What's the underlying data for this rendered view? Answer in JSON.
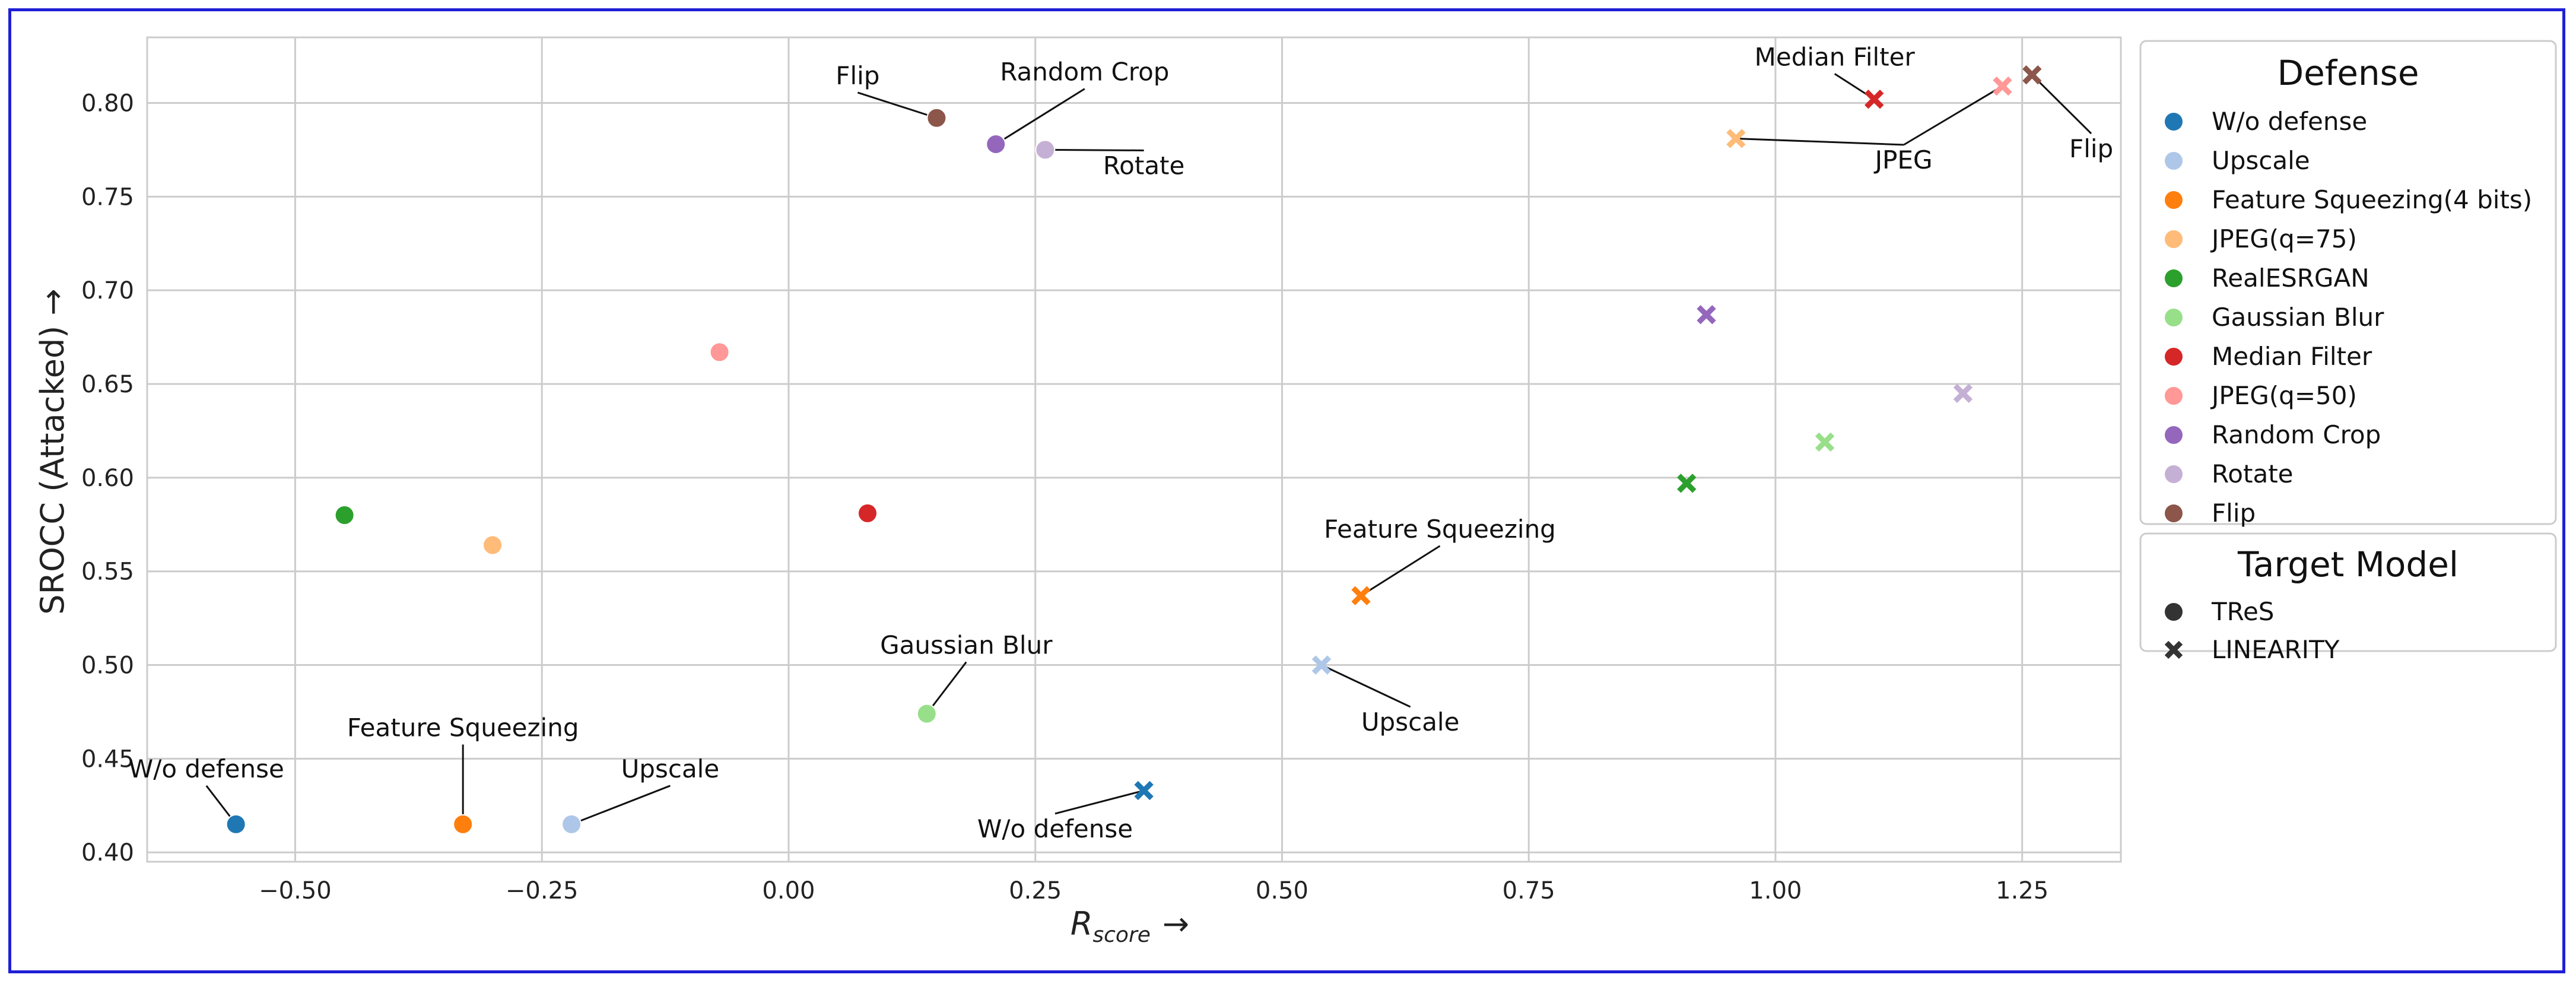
{
  "chart_data": {
    "type": "scatter",
    "title": "",
    "xlabel": "R",
    "xlabel_subscript": "score",
    "xlabel_arrow": "→",
    "ylabel": "SROCC (Attacked) →",
    "xlim": [
      -0.65,
      1.35
    ],
    "ylim": [
      0.395,
      0.835
    ],
    "xticks": [
      -0.5,
      -0.25,
      0.0,
      0.25,
      0.5,
      0.75,
      1.0,
      1.25
    ],
    "xtick_labels": [
      "−0.50",
      "−0.25",
      "0.00",
      "0.25",
      "0.50",
      "0.75",
      "1.00",
      "1.25"
    ],
    "yticks": [
      0.4,
      0.45,
      0.5,
      0.55,
      0.6,
      0.65,
      0.7,
      0.75,
      0.8
    ],
    "ytick_labels": [
      "0.40",
      "0.45",
      "0.50",
      "0.55",
      "0.60",
      "0.65",
      "0.70",
      "0.75",
      "0.80"
    ],
    "grid": true,
    "series": [
      {
        "name": "W/o defense",
        "color": "#1f77b4",
        "points": [
          {
            "model": "TReS",
            "x": -0.56,
            "y": 0.415
          },
          {
            "model": "LINEARITY",
            "x": 0.36,
            "y": 0.433
          }
        ]
      },
      {
        "name": "Upscale",
        "color": "#aec7e8",
        "points": [
          {
            "model": "TReS",
            "x": -0.22,
            "y": 0.415
          },
          {
            "model": "LINEARITY",
            "x": 0.54,
            "y": 0.5
          }
        ]
      },
      {
        "name": "Feature Squeezing(4 bits)",
        "color": "#ff7f0e",
        "points": [
          {
            "model": "TReS",
            "x": -0.33,
            "y": 0.415
          },
          {
            "model": "LINEARITY",
            "x": 0.58,
            "y": 0.537
          }
        ]
      },
      {
        "name": "JPEG(q=75)",
        "color": "#ffbb78",
        "points": [
          {
            "model": "TReS",
            "x": -0.3,
            "y": 0.564
          },
          {
            "model": "LINEARITY",
            "x": 0.96,
            "y": 0.781
          }
        ]
      },
      {
        "name": "RealESRGAN",
        "color": "#2ca02c",
        "points": [
          {
            "model": "TReS",
            "x": -0.45,
            "y": 0.58
          },
          {
            "model": "LINEARITY",
            "x": 0.91,
            "y": 0.597
          }
        ]
      },
      {
        "name": "Gaussian Blur",
        "color": "#98df8a",
        "points": [
          {
            "model": "TReS",
            "x": 0.14,
            "y": 0.474
          },
          {
            "model": "LINEARITY",
            "x": 1.05,
            "y": 0.619
          }
        ]
      },
      {
        "name": "Median Filter",
        "color": "#d62728",
        "points": [
          {
            "model": "TReS",
            "x": 0.08,
            "y": 0.581
          },
          {
            "model": "LINEARITY",
            "x": 1.1,
            "y": 0.802
          }
        ]
      },
      {
        "name": "JPEG(q=50)",
        "color": "#ff9896",
        "points": [
          {
            "model": "TReS",
            "x": -0.07,
            "y": 0.667
          },
          {
            "model": "LINEARITY",
            "x": 1.23,
            "y": 0.809
          }
        ]
      },
      {
        "name": "Random Crop",
        "color": "#9467bd",
        "points": [
          {
            "model": "TReS",
            "x": 0.21,
            "y": 0.778
          },
          {
            "model": "LINEARITY",
            "x": 0.93,
            "y": 0.687
          }
        ]
      },
      {
        "name": "Rotate",
        "color": "#c5b0d5",
        "points": [
          {
            "model": "TReS",
            "x": 0.26,
            "y": 0.775
          },
          {
            "model": "LINEARITY",
            "x": 1.19,
            "y": 0.645
          }
        ]
      },
      {
        "name": "Flip",
        "color": "#8c564b",
        "points": [
          {
            "model": "TReS",
            "x": 0.15,
            "y": 0.792
          },
          {
            "model": "LINEARITY",
            "x": 1.26,
            "y": 0.815
          }
        ]
      }
    ],
    "annotations": [
      {
        "text": "W/o defense",
        "point": [
          -0.56,
          0.415
        ],
        "text_at": [
          -0.59,
          0.44
        ]
      },
      {
        "text": "Feature Squeezing",
        "point": [
          -0.33,
          0.415
        ],
        "text_at": [
          -0.33,
          0.462
        ]
      },
      {
        "text": "Upscale",
        "point": [
          -0.22,
          0.415
        ],
        "text_at": [
          -0.12,
          0.44
        ]
      },
      {
        "text": "W/o defense",
        "point": [
          0.36,
          0.433
        ],
        "text_at": [
          0.27,
          0.408
        ]
      },
      {
        "text": "Gaussian Blur",
        "point": [
          0.14,
          0.474
        ],
        "text_at": [
          0.18,
          0.506
        ]
      },
      {
        "text": "Feature Squeezing",
        "point": [
          0.58,
          0.537
        ],
        "text_at": [
          0.66,
          0.568
        ]
      },
      {
        "text": "Upscale",
        "point": [
          0.54,
          0.5
        ],
        "text_at": [
          0.63,
          0.465
        ]
      },
      {
        "text": "Flip",
        "point": [
          0.15,
          0.792
        ],
        "text_at": [
          0.07,
          0.81
        ]
      },
      {
        "text": "Random Crop",
        "point": [
          0.21,
          0.778
        ],
        "text_at": [
          0.3,
          0.812
        ]
      },
      {
        "text": "Rotate",
        "point": [
          0.26,
          0.775
        ],
        "text_at": [
          0.36,
          0.762
        ]
      },
      {
        "text": "Median Filter",
        "point": [
          1.1,
          0.802
        ],
        "text_at": [
          1.06,
          0.82
        ]
      },
      {
        "text": "JPEG",
        "point": [
          0.96,
          0.781
        ],
        "text_at": [
          1.13,
          0.765
        ]
      },
      {
        "text": "JPEG",
        "point": [
          1.23,
          0.809
        ],
        "text_at": [
          1.13,
          0.765
        ]
      },
      {
        "text": "Flip",
        "point": [
          1.26,
          0.815
        ],
        "text_at": [
          1.32,
          0.771
        ]
      }
    ],
    "legend": {
      "position": "right",
      "defense_title": "Defense",
      "model_title": "Target Model",
      "models": [
        {
          "name": "TReS",
          "marker": "circle"
        },
        {
          "name": "LINEARITY",
          "marker": "x"
        }
      ]
    }
  }
}
